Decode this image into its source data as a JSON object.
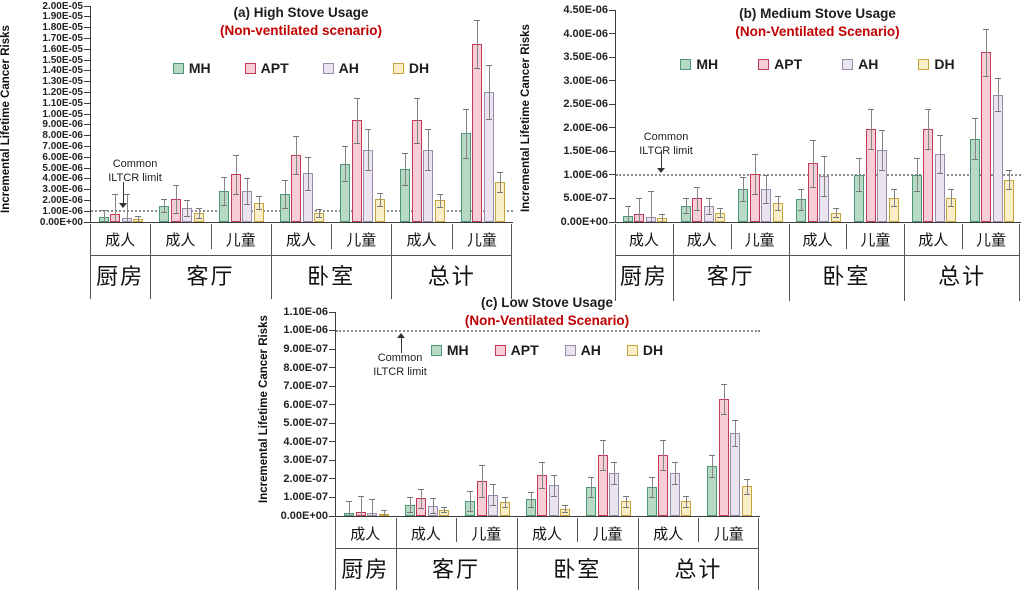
{
  "legend": {
    "items": [
      {
        "label": "MH"
      },
      {
        "label": "APT"
      },
      {
        "label": "AH"
      },
      {
        "label": "DH"
      }
    ]
  },
  "colors": {
    "MH": {
      "fill": "#b7dac4",
      "stroke": "#4f9678"
    },
    "APT": {
      "fill": "#f7cdd7",
      "stroke": "#c23a55"
    },
    "AH": {
      "fill": "#eae4f0",
      "stroke": "#998cab"
    },
    "DH": {
      "fill": "#f9eec7",
      "stroke": "#c7a33c"
    },
    "subtitle_red": "#c00000",
    "error_bar": "#858585",
    "axis": "#3c3c3c",
    "limit_line": "#8f8f8f"
  },
  "chart_data": [
    {
      "type": "bar",
      "title": "(a) High Stove Usage",
      "subtitle": "(Non-ventilated scenario)",
      "ylabel": "Incremental Lifetime Cancer Risks",
      "ylim": [
        0,
        2e-05
      ],
      "ytick_labels": [
        "2.00E-05",
        "1.90E-05",
        "1.80E-05",
        "1.70E-05",
        "1.60E-05",
        "1.50E-05",
        "1.40E-05",
        "1.30E-05",
        "1.20E-05",
        "1.10E-05",
        "1.00E-05",
        "9.00E-06",
        "8.00E-06",
        "7.00E-06",
        "6.00E-06",
        "5.00E-06",
        "4.00E-06",
        "3.00E-06",
        "2.00E-06",
        "1.00E-06",
        "0.00E+00"
      ],
      "limit_line": {
        "value": 1e-06,
        "label_line1": "Common",
        "label_line2": "ILTCR limit"
      },
      "sub_categories": [
        "成人",
        "成人",
        "儿童",
        "成人",
        "儿童",
        "成人",
        "儿童"
      ],
      "location_groups": [
        {
          "label": "厨房",
          "span": 1
        },
        {
          "label": "客厅",
          "span": 2
        },
        {
          "label": "卧室",
          "span": 2
        },
        {
          "label": "总计",
          "span": 2
        }
      ],
      "series": [
        {
          "name": "MH",
          "values": [
            4.5e-07,
            1.5e-06,
            2.9e-06,
            2.6e-06,
            5.4e-06,
            4.9e-06,
            8.2e-06
          ],
          "err_hi": [
            1.1e-06,
            2.1e-06,
            4.2e-06,
            3.9e-06,
            7e-06,
            6.4e-06,
            1.05e-05
          ]
        },
        {
          "name": "APT",
          "values": [
            7e-07,
            2.1e-06,
            4.4e-06,
            6.2e-06,
            9.4e-06,
            9.4e-06,
            1.65e-05
          ],
          "err_hi": [
            2.6e-06,
            3.4e-06,
            6.2e-06,
            8e-06,
            1.15e-05,
            1.15e-05,
            1.87e-05
          ]
        },
        {
          "name": "AH",
          "values": [
            4e-07,
            1.3e-06,
            2.9e-06,
            4.5e-06,
            6.7e-06,
            6.7e-06,
            1.2e-05
          ],
          "err_hi": [
            2.6e-06,
            2e-06,
            4.1e-06,
            6e-06,
            8.6e-06,
            8.6e-06,
            1.45e-05
          ]
        },
        {
          "name": "DH",
          "values": [
            2.5e-07,
            8.5e-07,
            1.8e-06,
            8.5e-07,
            2.1e-06,
            2e-06,
            3.7e-06
          ],
          "err_hi": [
            6e-07,
            1.3e-06,
            2.4e-06,
            1.2e-06,
            2.7e-06,
            2.6e-06,
            4.6e-06
          ]
        }
      ]
    },
    {
      "type": "bar",
      "title": "(b) Medium Stove Usage",
      "subtitle": "(Non-Ventilated Scenario)",
      "ylabel": "Incremental Lifetime Cancer Risks",
      "ylim": [
        0,
        4.5e-06
      ],
      "ytick_labels": [
        "4.50E-06",
        "4.00E-06",
        "3.50E-06",
        "3.00E-06",
        "2.50E-06",
        "2.00E-06",
        "1.50E-06",
        "1.00E-06",
        "5.00E-07",
        "0.00E+00"
      ],
      "limit_line": {
        "value": 1e-06,
        "label_line1": "Common",
        "label_line2": "ILTCR limit"
      },
      "sub_categories": [
        "成人",
        "成人",
        "儿童",
        "成人",
        "儿童",
        "成人",
        "儿童"
      ],
      "location_groups": [
        {
          "label": "厨房",
          "span": 1
        },
        {
          "label": "客厅",
          "span": 2
        },
        {
          "label": "卧室",
          "span": 2
        },
        {
          "label": "总计",
          "span": 2
        }
      ],
      "series": [
        {
          "name": "MH",
          "values": [
            1.2e-07,
            3.5e-07,
            7e-07,
            4.8e-07,
            1e-06,
            1e-06,
            1.77e-06
          ],
          "err_hi": [
            3.5e-07,
            5e-07,
            9.5e-07,
            7e-07,
            1.35e-06,
            1.35e-06,
            2.2e-06
          ]
        },
        {
          "name": "APT",
          "values": [
            1.7e-07,
            5e-07,
            1.02e-06,
            1.25e-06,
            1.97e-06,
            1.97e-06,
            3.6e-06
          ],
          "err_hi": [
            5e-07,
            7.5e-07,
            1.45e-06,
            1.75e-06,
            2.4e-06,
            2.4e-06,
            4.1e-06
          ]
        },
        {
          "name": "AH",
          "values": [
            1.1e-07,
            3.3e-07,
            7e-07,
            9.8e-07,
            1.53e-06,
            1.45e-06,
            2.7e-06
          ],
          "err_hi": [
            6.5e-07,
            5e-07,
            1e-06,
            1.4e-06,
            1.95e-06,
            1.85e-06,
            3.05e-06
          ]
        },
        {
          "name": "DH",
          "values": [
            8e-08,
            2e-07,
            4e-07,
            2e-07,
            5.2e-07,
            5.2e-07,
            9e-07
          ],
          "err_hi": [
            1.8e-07,
            3e-07,
            5.5e-07,
            3e-07,
            7e-07,
            7e-07,
            1.1e-06
          ]
        }
      ]
    },
    {
      "type": "bar",
      "title": "(c) Low Stove Usage",
      "subtitle": "(Non-Ventilated Scenario)",
      "ylabel": "Incremental Lifetime Cancer Risks",
      "ylim": [
        0,
        1.1e-06
      ],
      "ytick_labels": [
        "1.10E-06",
        "1.00E-06",
        "9.00E-07",
        "8.00E-07",
        "7.00E-07",
        "6.00E-07",
        "5.00E-07",
        "4.00E-07",
        "3.00E-07",
        "2.00E-07",
        "1.00E-07",
        "0.00E+00"
      ],
      "limit_line": {
        "value": 1e-06,
        "label_line1": "Common",
        "label_line2": "ILTCR limit"
      },
      "sub_categories": [
        "成人",
        "成人",
        "儿童",
        "成人",
        "儿童",
        "成人",
        "儿童"
      ],
      "location_groups": [
        {
          "label": "厨房",
          "span": 1
        },
        {
          "label": "客厅",
          "span": 2
        },
        {
          "label": "卧室",
          "span": 2
        },
        {
          "label": "总计",
          "span": 2
        }
      ],
      "series": [
        {
          "name": "MH",
          "values": [
            1.5e-08,
            6e-08,
            8e-08,
            9e-08,
            1.55e-07,
            1.55e-07,
            2.7e-07
          ],
          "err_hi": [
            8e-08,
            1e-07,
            1.35e-07,
            1.3e-07,
            2.1e-07,
            2.1e-07,
            3.3e-07
          ]
        },
        {
          "name": "APT",
          "values": [
            2e-08,
            9.5e-08,
            1.9e-07,
            2.2e-07,
            3.3e-07,
            3.3e-07,
            6.3e-07
          ],
          "err_hi": [
            1.1e-07,
            1.45e-07,
            2.75e-07,
            2.9e-07,
            4.1e-07,
            4.1e-07,
            7.1e-07
          ]
        },
        {
          "name": "AH",
          "values": [
            1.5e-08,
            5.5e-08,
            1.15e-07,
            1.65e-07,
            2.3e-07,
            2.3e-07,
            4.5e-07
          ],
          "err_hi": [
            9e-08,
            9.5e-08,
            1.7e-07,
            2.2e-07,
            2.9e-07,
            2.9e-07,
            5.2e-07
          ]
        },
        {
          "name": "DH",
          "values": [
            1e-08,
            3.5e-08,
            7.5e-08,
            4e-08,
            8e-08,
            8e-08,
            1.6e-07
          ],
          "err_hi": [
            3e-08,
            5e-08,
            1e-07,
            6e-08,
            1.1e-07,
            1.1e-07,
            2e-07
          ]
        }
      ]
    }
  ]
}
